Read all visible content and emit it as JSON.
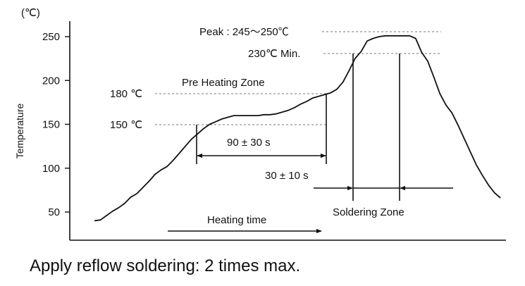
{
  "chart_data": {
    "type": "line",
    "ylabel": "Temperature",
    "unit": "(℃)",
    "ylim": [
      35,
      265
    ],
    "yticks": [
      50,
      100,
      150,
      200,
      250
    ],
    "grid": false,
    "series": [
      {
        "y": [
          40,
          41,
          46,
          51,
          55,
          60,
          67,
          71,
          78,
          85,
          93,
          98,
          102,
          109,
          117,
          125,
          133,
          139,
          145,
          150,
          153,
          156,
          158,
          160,
          160,
          160,
          160,
          160,
          161,
          161,
          162,
          164,
          166,
          169,
          173,
          176,
          180,
          182,
          184,
          186,
          190,
          198,
          211,
          225,
          233,
          245,
          248,
          250,
          251,
          251,
          251,
          251,
          251,
          248,
          232,
          222,
          204,
          185,
          172,
          163,
          149,
          134,
          119,
          104,
          92,
          81,
          72,
          66
        ]
      }
    ],
    "annotations": {
      "peak": "Peak : 245～250℃",
      "min230": "230℃ Min.",
      "preheat_zone": "Pre Heating Zone",
      "t180": "180 ℃",
      "t150": "150 ℃",
      "preheat_time": "90 ± 30 s",
      "solder_time": "30 ± 10 s",
      "solder_zone": "Soldering Zone",
      "heating_time": "Heating time"
    }
  },
  "footer": "Apply reflow soldering: 2 times max."
}
